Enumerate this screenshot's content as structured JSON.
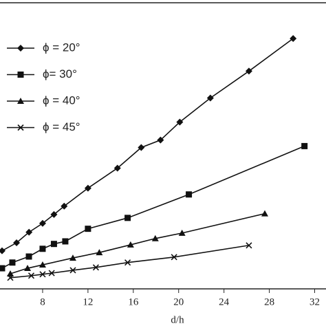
{
  "chart_data": {
    "type": "line",
    "x_label": "d/h",
    "xlim": [
      4.24,
      33
    ],
    "xticks": [
      8,
      12,
      16,
      20,
      24,
      28,
      32
    ],
    "ylim": [
      0,
      100
    ],
    "legend": "upper left",
    "series": [
      {
        "name": "ϕ = 20°",
        "color": "#111",
        "marker": "diamond",
        "x": [
          4.42,
          5.7,
          6.8,
          8,
          9,
          9.9,
          12,
          14.6,
          16.7,
          18.4,
          20.1,
          22.8,
          26.2,
          30.1
        ],
        "values": [
          13.3,
          16.1,
          19.8,
          22.9,
          26,
          28.9,
          35.2,
          42.2,
          49.4,
          52,
          58.3,
          66.7,
          76.1,
          87.5
        ]
      },
      {
        "name": "ϕ= 30°",
        "color": "#111",
        "marker": "square",
        "x": [
          4.42,
          5.33,
          6.79,
          8,
          9,
          10,
          12,
          15.5,
          20.9,
          31.1
        ],
        "values": [
          7.2,
          9.2,
          11.3,
          14.0,
          15.7,
          16.6,
          21.0,
          24.8,
          33.0,
          49.9
        ]
      },
      {
        "name": "ϕ = 40°",
        "color": "#111",
        "marker": "triangle",
        "x": [
          5.15,
          6.67,
          8,
          10.67,
          13.0,
          15.76,
          17.94,
          20.3,
          27.6
        ],
        "values": [
          5.3,
          7.2,
          8.4,
          10.8,
          12.7,
          15.4,
          17.6,
          19.5,
          26.3
        ]
      },
      {
        "name": "ϕ = 45°",
        "color": "#111",
        "marker": "x",
        "x": [
          5.15,
          7.0,
          8,
          8.8,
          10.67,
          12.7,
          15.5,
          19.6,
          26.2
        ],
        "values": [
          3.9,
          4.6,
          5.1,
          5.5,
          6.5,
          7.5,
          9.2,
          11.1,
          15.2
        ]
      }
    ]
  }
}
